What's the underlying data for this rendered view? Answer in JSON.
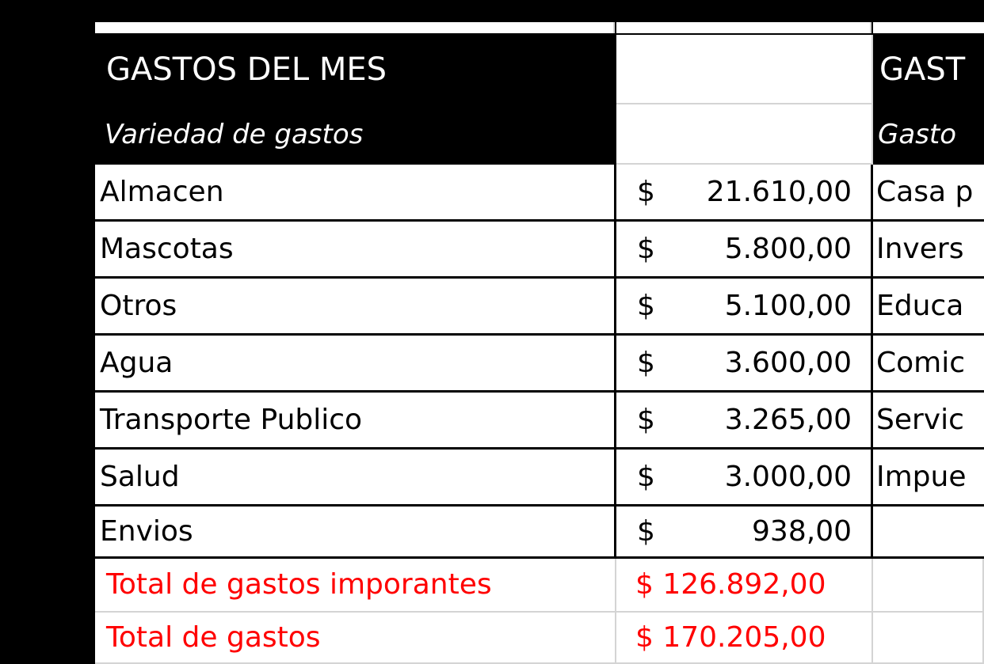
{
  "colors": {
    "accent_total": "#ff0000",
    "header_bg": "#000000",
    "grid": "#d4d4d4"
  },
  "sheet": {
    "left_block": {
      "title": "GASTOS DEL MES",
      "subtitle": "Variedad de gastos",
      "currency": "$",
      "rows": [
        {
          "label": "Almacen",
          "amount": "21.610,00"
        },
        {
          "label": "Mascotas",
          "amount": "5.800,00"
        },
        {
          "label": "Otros",
          "amount": "5.100,00"
        },
        {
          "label": "Agua",
          "amount": "3.600,00"
        },
        {
          "label": "Transporte Publico",
          "amount": "3.265,00"
        },
        {
          "label": "Salud",
          "amount": "3.000,00"
        },
        {
          "label": "Envios",
          "amount": "938,00"
        }
      ],
      "totals": [
        {
          "label": "Total de gastos imporantes",
          "amount": "$ 126.892,00"
        },
        {
          "label": "Total de gastos",
          "amount": "$ 170.205,00"
        }
      ]
    },
    "right_block": {
      "title": "GAST",
      "subtitle": "Gasto",
      "rows": [
        "Casa p",
        "Invers",
        "Educa",
        "Comic",
        "Servic",
        "Impue"
      ]
    }
  }
}
